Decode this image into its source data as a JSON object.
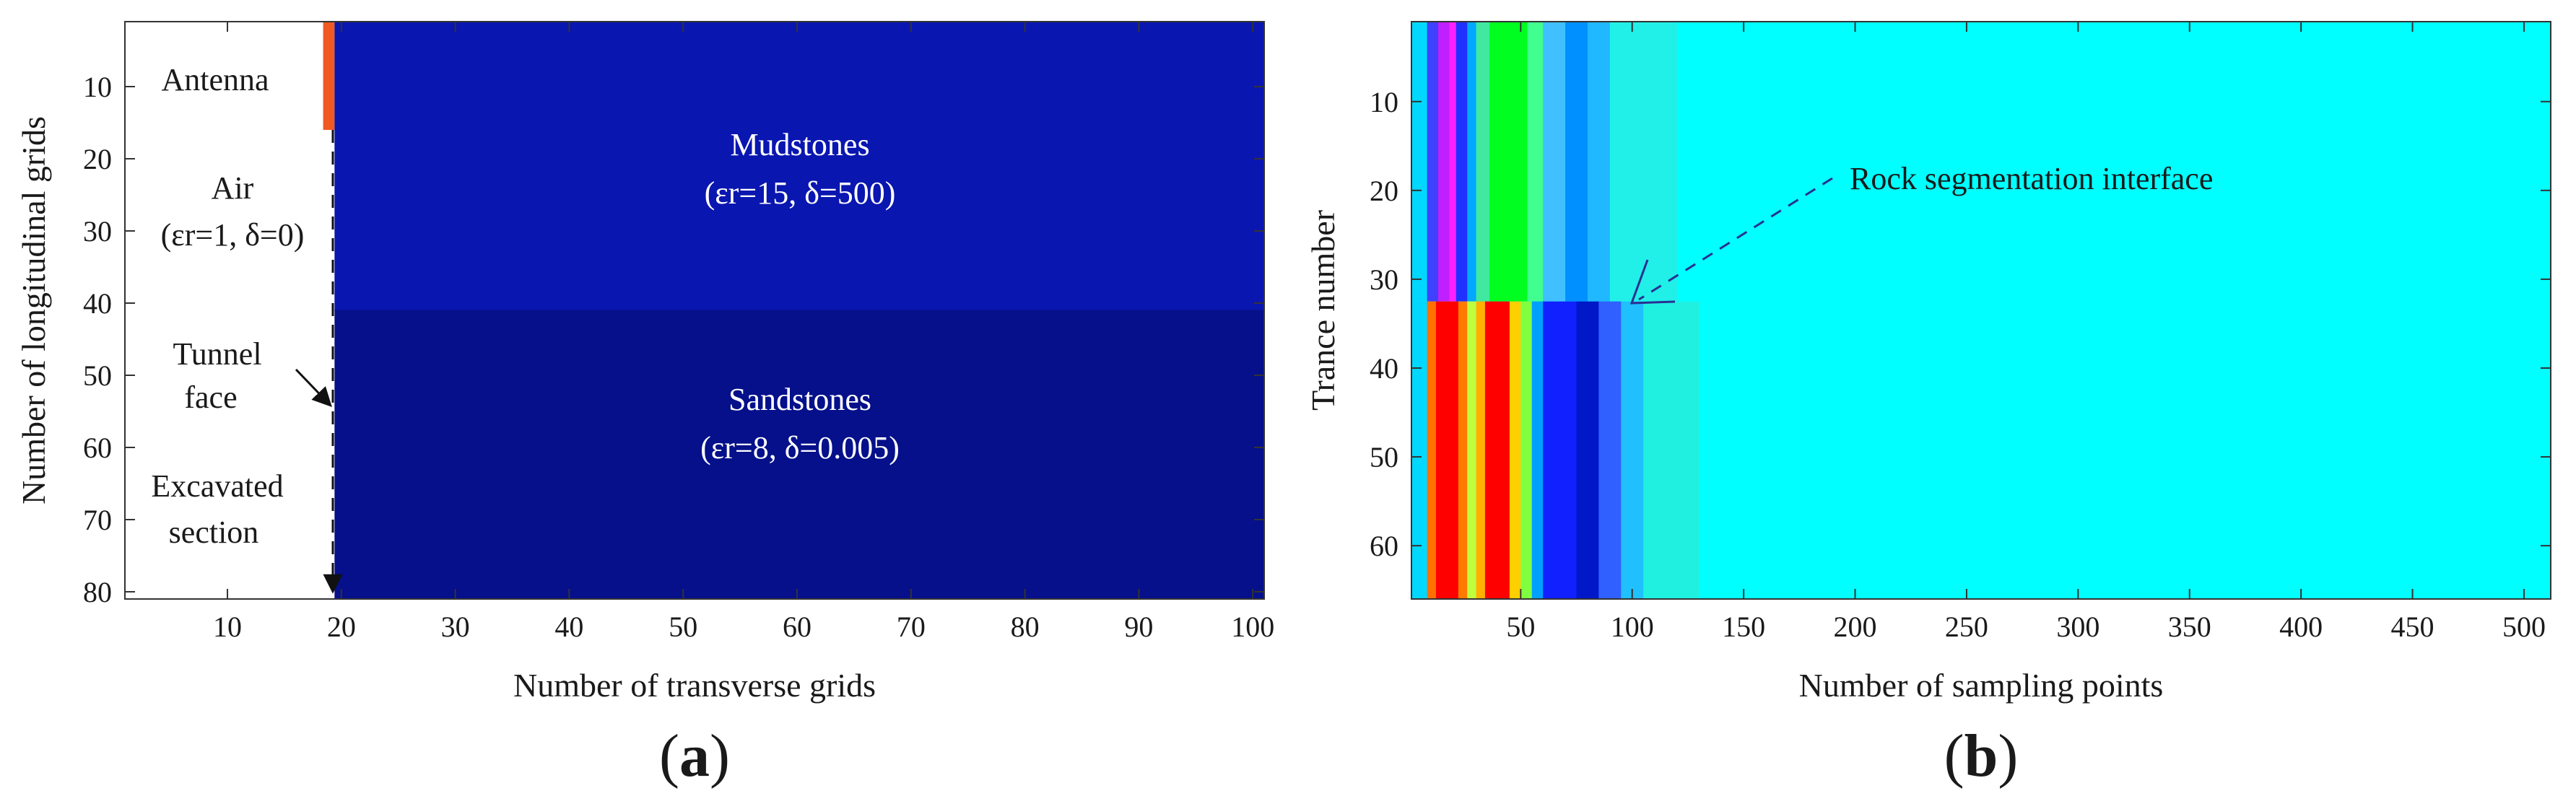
{
  "chart_data": [
    {
      "panel_label": "(a)",
      "panel_label_letter": "a",
      "type": "heatmap",
      "xlabel": "Number of transverse grids",
      "ylabel": "Number of longitudinal grids",
      "xlim": [
        1,
        101
      ],
      "ylim": [
        1,
        81
      ],
      "y_reversed": true,
      "xticks": [
        10,
        20,
        30,
        40,
        50,
        60,
        70,
        80,
        90,
        100
      ],
      "yticks": [
        10,
        20,
        30,
        40,
        50,
        60,
        70,
        80
      ],
      "regions": [
        {
          "name": "Air",
          "x": [
            1,
            19
          ],
          "y": [
            1,
            81
          ],
          "color": "#ffffff"
        },
        {
          "name": "Antenna",
          "x": [
            18.4,
            19.4
          ],
          "y": [
            1,
            16
          ],
          "color": "#f05a22"
        },
        {
          "name": "Mudstones",
          "x": [
            19.4,
            101
          ],
          "y": [
            1,
            41
          ],
          "color": "#0a16b0"
        },
        {
          "name": "Sandstones",
          "x": [
            19.4,
            101
          ],
          "y": [
            41,
            81
          ],
          "color": "#05108a"
        }
      ],
      "annotations": {
        "antenna": "Antenna",
        "air_name": "Air",
        "air_params": "(εr=1, δ=0)",
        "tunnel_line1": "Tunnel",
        "tunnel_line2": "face",
        "excavated_line1": "Excavated",
        "excavated_line2": "section",
        "mud_name": "Mudstones",
        "mud_params": "(εr=15, δ=500)",
        "sand_name": "Sandstones",
        "sand_params": "(εr=8, δ=0.005)"
      }
    },
    {
      "panel_label": "(b)",
      "panel_label_letter": "b",
      "type": "heatmap",
      "xlabel": "Number of sampling points",
      "ylabel": "Trance number",
      "xlim": [
        1,
        512
      ],
      "ylim": [
        1,
        66
      ],
      "y_reversed": true,
      "xticks": [
        50,
        100,
        150,
        200,
        250,
        300,
        350,
        400,
        450,
        500
      ],
      "yticks": [
        10,
        20,
        30,
        40,
        50,
        60
      ],
      "interface_trace": 32.5,
      "background_color": "#00ffff",
      "upper_traces_colormap": [
        {
          "from": 1,
          "to": 8,
          "color": "#00d8ff"
        },
        {
          "from": 8,
          "to": 13,
          "color": "#4040ff"
        },
        {
          "from": 13,
          "to": 18,
          "color": "#c020ff"
        },
        {
          "from": 18,
          "to": 21,
          "color": "#ff20ff"
        },
        {
          "from": 21,
          "to": 26,
          "color": "#2030ff"
        },
        {
          "from": 26,
          "to": 30,
          "color": "#00a8ff"
        },
        {
          "from": 30,
          "to": 36,
          "color": "#40e8a0"
        },
        {
          "from": 36,
          "to": 53,
          "color": "#00ff20"
        },
        {
          "from": 53,
          "to": 60,
          "color": "#40ff90"
        },
        {
          "from": 60,
          "to": 70,
          "color": "#40c0ff"
        },
        {
          "from": 70,
          "to": 80,
          "color": "#0090ff"
        },
        {
          "from": 80,
          "to": 90,
          "color": "#20b8ff"
        },
        {
          "from": 90,
          "to": 120,
          "color": "#20f0e8"
        }
      ],
      "lower_traces_colormap": [
        {
          "from": 1,
          "to": 8,
          "color": "#00d8ff"
        },
        {
          "from": 8,
          "to": 12,
          "color": "#ff7000"
        },
        {
          "from": 12,
          "to": 22,
          "color": "#ff0000"
        },
        {
          "from": 22,
          "to": 26,
          "color": "#ff7a00"
        },
        {
          "from": 26,
          "to": 30,
          "color": "#c0ff40"
        },
        {
          "from": 30,
          "to": 34,
          "color": "#ffb000"
        },
        {
          "from": 34,
          "to": 45,
          "color": "#ff0000"
        },
        {
          "from": 45,
          "to": 50,
          "color": "#ffd000"
        },
        {
          "from": 50,
          "to": 55,
          "color": "#80ff40"
        },
        {
          "from": 55,
          "to": 60,
          "color": "#00a0ff"
        },
        {
          "from": 60,
          "to": 75,
          "color": "#1020ff"
        },
        {
          "from": 75,
          "to": 85,
          "color": "#0018c8"
        },
        {
          "from": 85,
          "to": 95,
          "color": "#3060ff"
        },
        {
          "from": 95,
          "to": 105,
          "color": "#20c0ff"
        },
        {
          "from": 105,
          "to": 130,
          "color": "#20f0e0"
        }
      ],
      "annotation": "Rock segmentation interface"
    }
  ]
}
